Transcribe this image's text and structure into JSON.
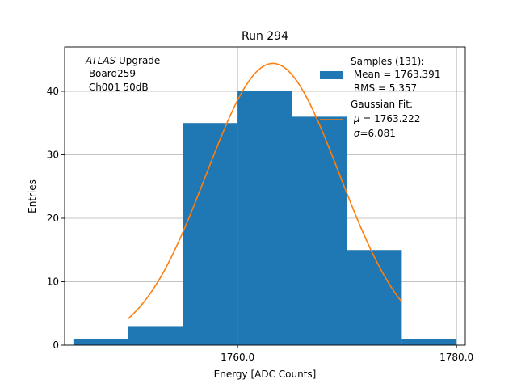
{
  "chart_data": {
    "type": "bar",
    "title": "Run 294",
    "xlabel": "Energy [ADC Counts]",
    "ylabel": "Entries",
    "xlim": [
      1744.2,
      1780.8
    ],
    "ylim": [
      0,
      47
    ],
    "grid": true,
    "x_ticks": [
      {
        "value": 1760,
        "label": "1760.0"
      },
      {
        "value": 1780,
        "label": "1780.0"
      }
    ],
    "y_ticks": [
      {
        "value": 0,
        "label": "0"
      },
      {
        "value": 10,
        "label": "10"
      },
      {
        "value": 20,
        "label": "20"
      },
      {
        "value": 30,
        "label": "30"
      },
      {
        "value": 40,
        "label": "40"
      }
    ],
    "histogram": {
      "color": "#1f77b4",
      "bins": [
        {
          "x0": 1745,
          "x1": 1750,
          "count": 1
        },
        {
          "x0": 1750,
          "x1": 1755,
          "count": 3
        },
        {
          "x0": 1755,
          "x1": 1760,
          "count": 35
        },
        {
          "x0": 1760,
          "x1": 1765,
          "count": 40
        },
        {
          "x0": 1765,
          "x1": 1770,
          "count": 36
        },
        {
          "x0": 1770,
          "x1": 1775,
          "count": 15
        },
        {
          "x0": 1775,
          "x1": 1780,
          "count": 1
        }
      ]
    },
    "gaussian_fit": {
      "color": "#ff7f0e",
      "mu": 1763.222,
      "sigma": 6.081,
      "amplitude": 44.4,
      "x_range": [
        1750,
        1775
      ]
    },
    "annotation": {
      "italic_part": "ATLAS",
      "rest_line1": " Upgrade",
      "line2": " Board259",
      "line3": " Ch001 50dB"
    },
    "legend": {
      "placement": "top-right",
      "hist_lines": [
        "Samples (131):",
        " Mean = 1763.391",
        " RMS = 5.357"
      ],
      "fit_line1": "Gaussian Fit:",
      "fit_mu_symbol": "μ",
      "fit_mu_value": " = 1763.222",
      "fit_sigma_symbol": "σ",
      "fit_sigma_value": "=6.081"
    }
  }
}
